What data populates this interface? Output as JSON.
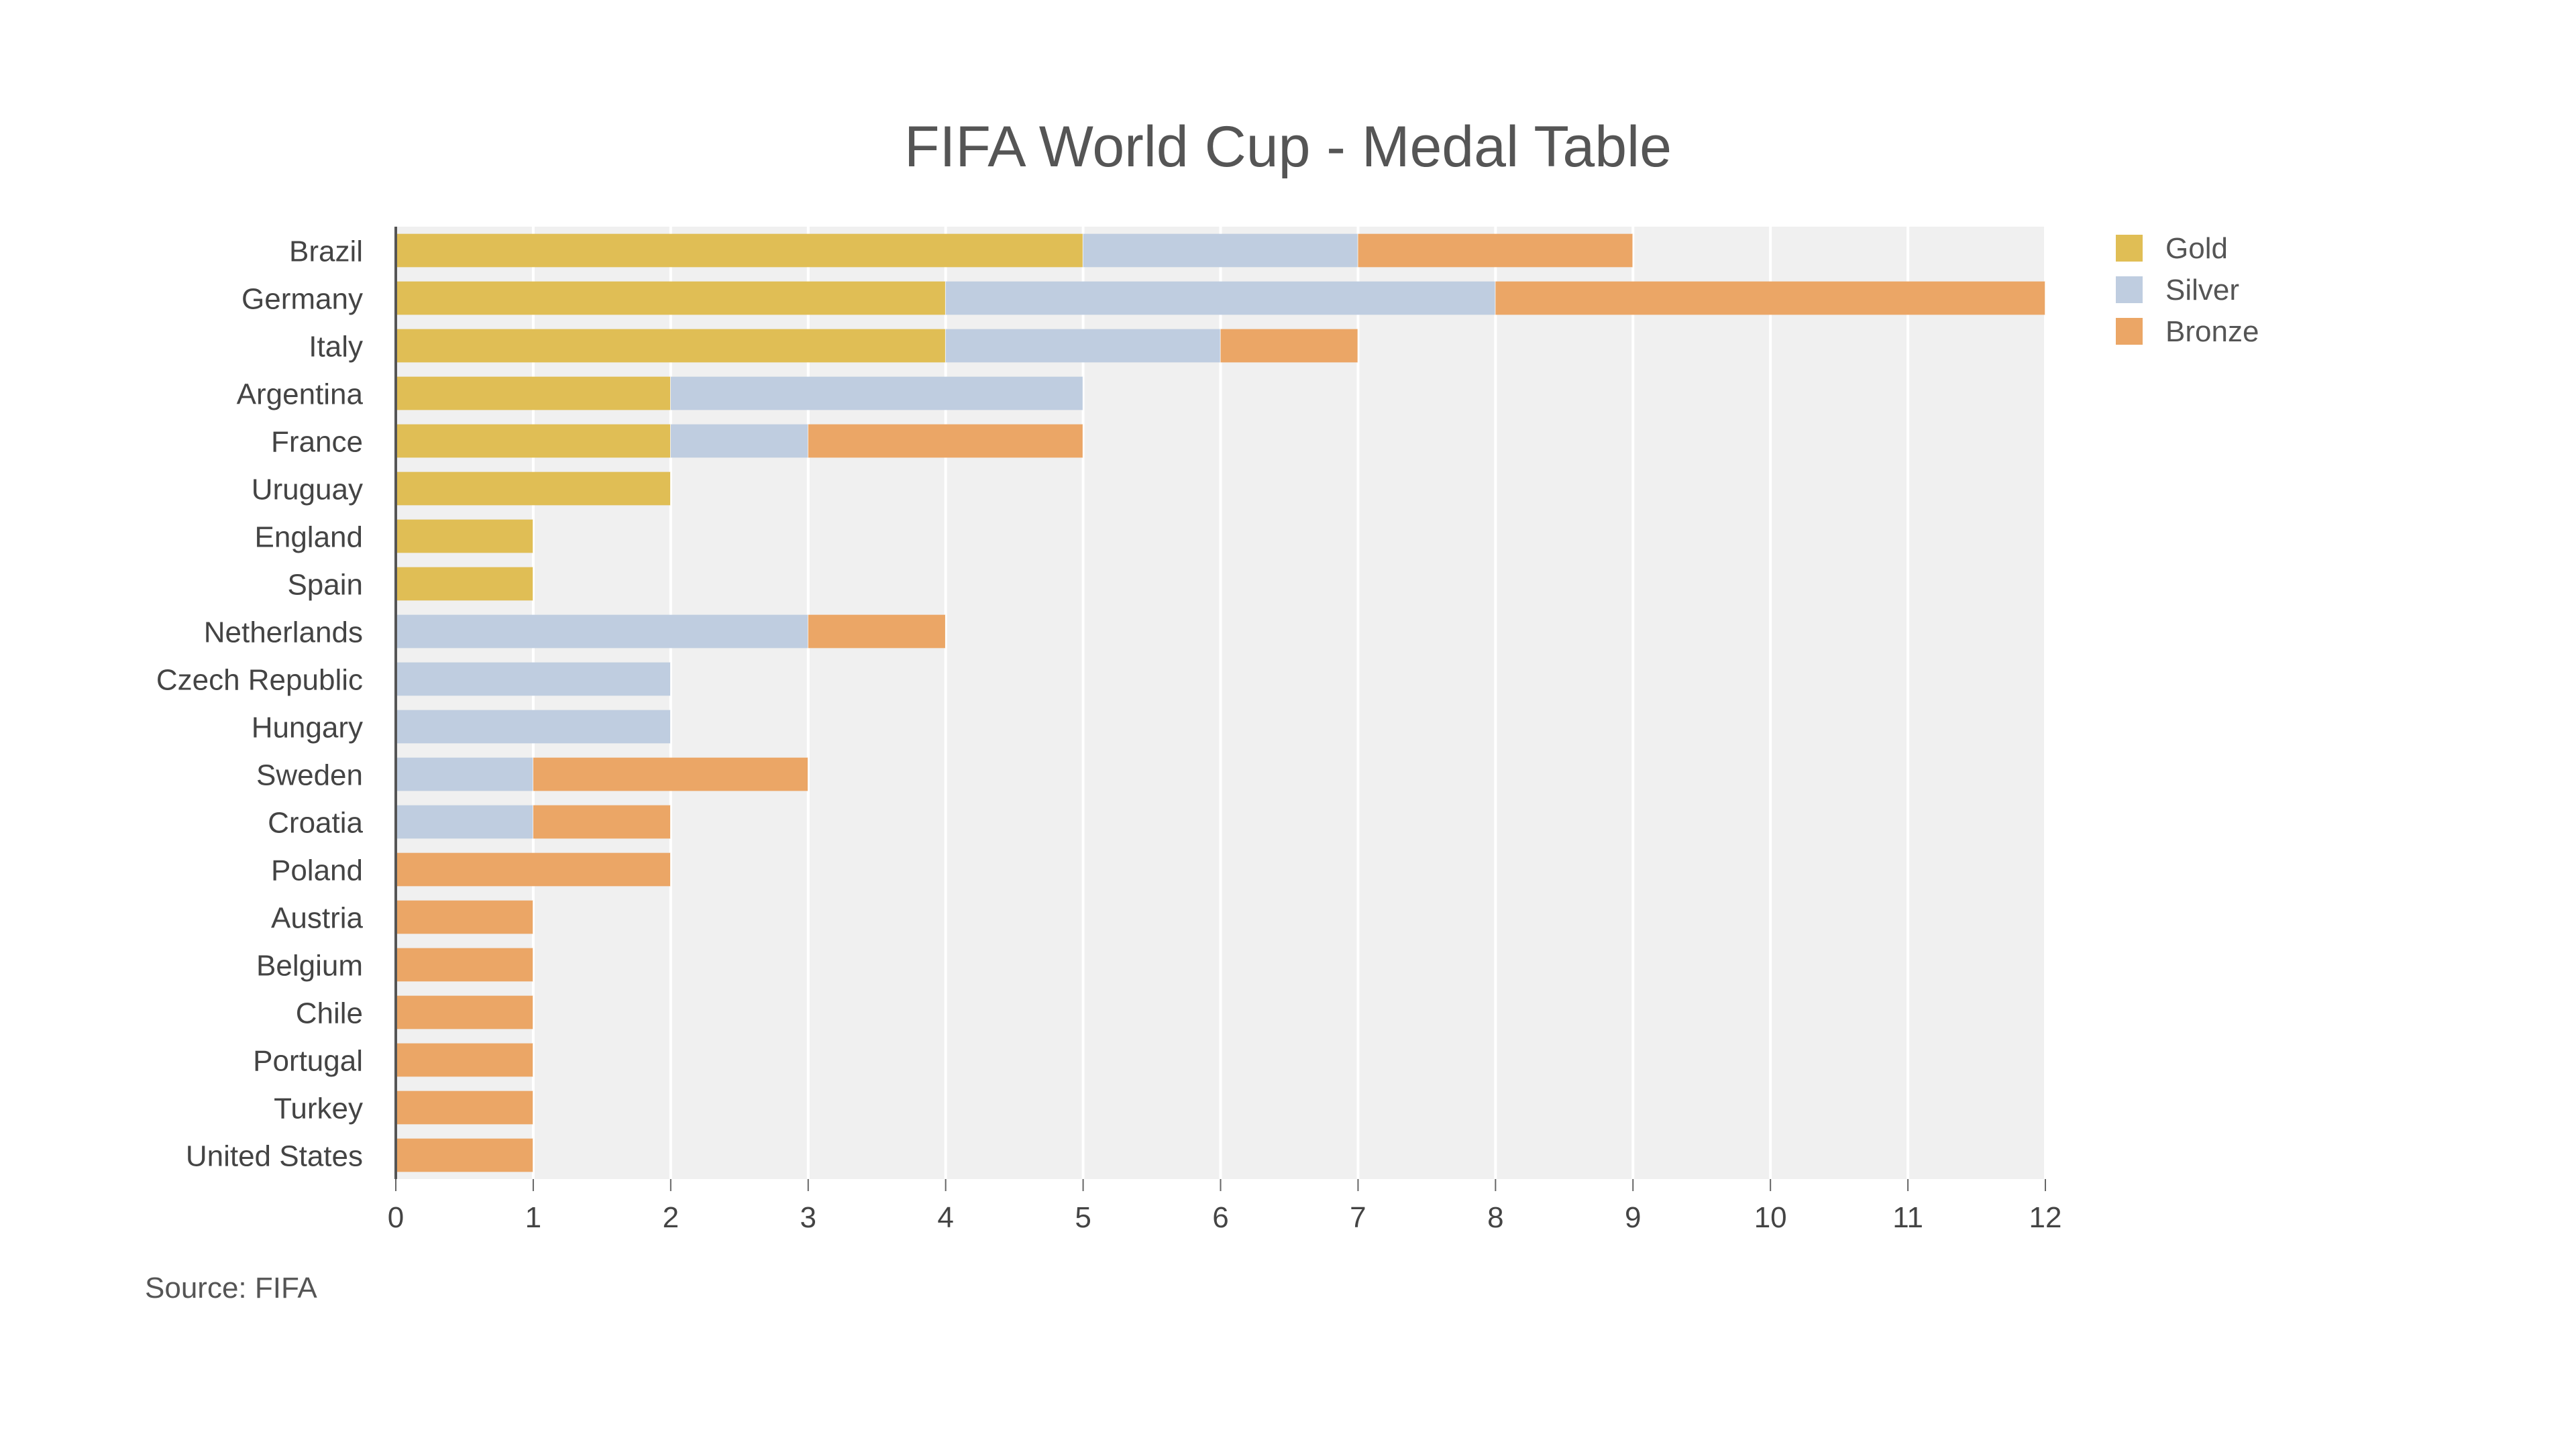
{
  "chart_data": {
    "type": "bar",
    "orientation": "horizontal",
    "stacked": true,
    "title": "FIFA World Cup - Medal Table",
    "source": "Source: FIFA",
    "categories": [
      "Brazil",
      "Germany",
      "Italy",
      "Argentina",
      "France",
      "Uruguay",
      "England",
      "Spain",
      "Netherlands",
      "Czech Republic",
      "Hungary",
      "Sweden",
      "Croatia",
      "Poland",
      "Austria",
      "Belgium",
      "Chile",
      "Portugal",
      "Turkey",
      "United States"
    ],
    "series": [
      {
        "name": "Gold",
        "color": "#E0BE55",
        "values": [
          5,
          4,
          4,
          2,
          2,
          2,
          1,
          1,
          0,
          0,
          0,
          0,
          0,
          0,
          0,
          0,
          0,
          0,
          0,
          0
        ]
      },
      {
        "name": "Silver",
        "color": "#BFCDE0",
        "values": [
          2,
          4,
          2,
          3,
          1,
          0,
          0,
          0,
          3,
          2,
          2,
          1,
          1,
          0,
          0,
          0,
          0,
          0,
          0,
          0
        ]
      },
      {
        "name": "Bronze",
        "color": "#EBA666",
        "values": [
          2,
          4,
          1,
          0,
          2,
          0,
          0,
          0,
          1,
          0,
          0,
          2,
          1,
          2,
          1,
          1,
          1,
          1,
          1,
          1
        ]
      }
    ],
    "xlim": [
      0,
      12
    ],
    "xticks": [
      "0",
      "1",
      "2",
      "3",
      "4",
      "5",
      "6",
      "7",
      "8",
      "9",
      "10",
      "11",
      "12"
    ],
    "xlabel": "",
    "ylabel": "",
    "grid": true,
    "legend_position": "top-right",
    "plot_background": "#F0F0F0"
  }
}
